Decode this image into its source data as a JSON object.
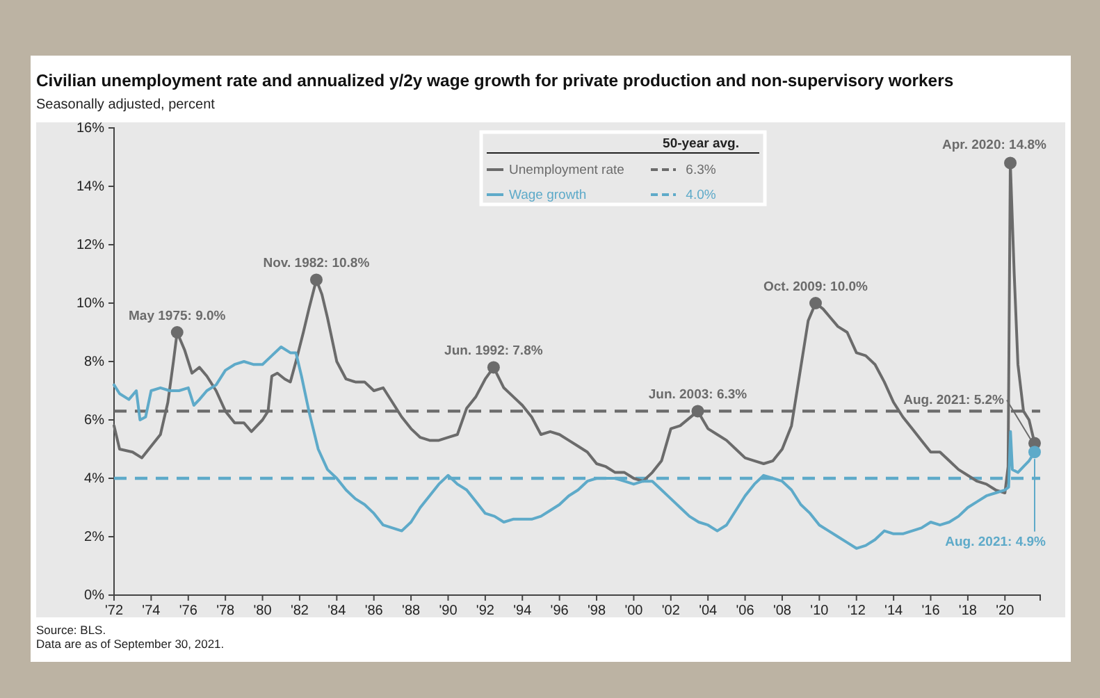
{
  "chart_data": {
    "type": "line",
    "title": "Civilian unemployment rate and annualized y/2y wage growth for private production and non-supervisory workers",
    "subtitle": "Seasonally adjusted, percent",
    "legend_title": "50-year avg.",
    "legend": "top",
    "marker": "none",
    "line_style": "solid",
    "grid": false,
    "xlim": [
      1972,
      2021.9
    ],
    "xticks": [
      {
        "value": 1972,
        "label": "'72"
      },
      {
        "value": 1974,
        "label": "'74"
      },
      {
        "value": 1976,
        "label": "'76"
      },
      {
        "value": 1978,
        "label": "'78"
      },
      {
        "value": 1980,
        "label": "'80"
      },
      {
        "value": 1982,
        "label": "'82"
      },
      {
        "value": 1984,
        "label": "'84"
      },
      {
        "value": 1986,
        "label": "'86"
      },
      {
        "value": 1988,
        "label": "'88"
      },
      {
        "value": 1990,
        "label": "'90"
      },
      {
        "value": 1992,
        "label": "'92"
      },
      {
        "value": 1994,
        "label": "'94"
      },
      {
        "value": 1996,
        "label": "'96"
      },
      {
        "value": 1998,
        "label": "'98"
      },
      {
        "value": 2000,
        "label": "'00"
      },
      {
        "value": 2002,
        "label": "'02"
      },
      {
        "value": 2004,
        "label": "'04"
      },
      {
        "value": 2006,
        "label": "'06"
      },
      {
        "value": 2008,
        "label": "'08"
      },
      {
        "value": 2010,
        "label": "'10"
      },
      {
        "value": 2012,
        "label": "'12"
      },
      {
        "value": 2014,
        "label": "'14"
      },
      {
        "value": 2016,
        "label": "'16"
      },
      {
        "value": 2018,
        "label": "'18"
      },
      {
        "value": 2020,
        "label": "'20"
      }
    ],
    "ylim": [
      0,
      16
    ],
    "yticks": [
      {
        "value": 0,
        "label": "0%"
      },
      {
        "value": 2,
        "label": "2%"
      },
      {
        "value": 4,
        "label": "4%"
      },
      {
        "value": 6,
        "label": "6%"
      },
      {
        "value": 8,
        "label": "8%"
      },
      {
        "value": 10,
        "label": "10%"
      },
      {
        "value": 12,
        "label": "12%"
      },
      {
        "value": 14,
        "label": "14%"
      },
      {
        "value": 16,
        "label": "16%"
      }
    ],
    "series": [
      {
        "name": "Unemployment rate",
        "color": "#6b6b6b",
        "x": [
          1972.0,
          1972.3,
          1973.0,
          1973.5,
          1974.0,
          1974.5,
          1974.9,
          1975.2,
          1975.4,
          1975.8,
          1976.2,
          1976.6,
          1977.0,
          1977.5,
          1978.0,
          1978.5,
          1979.0,
          1979.4,
          1980.0,
          1980.3,
          1980.5,
          1980.8,
          1981.2,
          1981.5,
          1981.8,
          1982.2,
          1982.5,
          1982.9,
          1983.2,
          1983.5,
          1984.0,
          1984.5,
          1985.0,
          1985.5,
          1986.0,
          1986.5,
          1987.0,
          1987.5,
          1988.0,
          1988.5,
          1989.0,
          1989.5,
          1990.0,
          1990.5,
          1991.0,
          1991.5,
          1992.0,
          1992.45,
          1993.0,
          1993.5,
          1994.0,
          1994.5,
          1995.0,
          1995.5,
          1996.0,
          1996.5,
          1997.0,
          1997.5,
          1998.0,
          1998.5,
          1999.0,
          1999.5,
          2000.0,
          2000.5,
          2001.0,
          2001.5,
          2002.0,
          2002.5,
          2003.45,
          2004.0,
          2004.5,
          2005.0,
          2005.5,
          2006.0,
          2006.5,
          2007.0,
          2007.5,
          2008.0,
          2008.5,
          2009.0,
          2009.4,
          2009.8,
          2010.2,
          2010.6,
          2011.0,
          2011.5,
          2012.0,
          2012.5,
          2013.0,
          2013.5,
          2014.0,
          2014.5,
          2015.0,
          2015.5,
          2016.0,
          2016.5,
          2017.0,
          2017.5,
          2018.0,
          2018.5,
          2019.0,
          2019.5,
          2020.0,
          2020.17,
          2020.29,
          2020.5,
          2020.7,
          2021.0,
          2021.3,
          2021.6
        ],
        "values": [
          5.8,
          5.0,
          4.9,
          4.7,
          5.1,
          5.5,
          6.6,
          8.0,
          9.0,
          8.4,
          7.6,
          7.8,
          7.5,
          7.0,
          6.3,
          5.9,
          5.9,
          5.6,
          6.0,
          6.3,
          7.5,
          7.6,
          7.4,
          7.3,
          8.0,
          9.0,
          9.8,
          10.8,
          10.3,
          9.5,
          8.0,
          7.4,
          7.3,
          7.3,
          7.0,
          7.1,
          6.6,
          6.1,
          5.7,
          5.4,
          5.3,
          5.3,
          5.4,
          5.5,
          6.4,
          6.8,
          7.4,
          7.8,
          7.1,
          6.8,
          6.5,
          6.1,
          5.5,
          5.6,
          5.5,
          5.3,
          5.1,
          4.9,
          4.5,
          4.4,
          4.2,
          4.2,
          4.0,
          3.9,
          4.2,
          4.6,
          5.7,
          5.8,
          6.3,
          5.7,
          5.5,
          5.3,
          5.0,
          4.7,
          4.6,
          4.5,
          4.6,
          5.0,
          5.8,
          7.8,
          9.4,
          10.0,
          9.8,
          9.5,
          9.2,
          9.0,
          8.3,
          8.2,
          7.9,
          7.3,
          6.6,
          6.1,
          5.7,
          5.3,
          4.9,
          4.9,
          4.6,
          4.3,
          4.1,
          3.9,
          3.8,
          3.6,
          3.5,
          4.4,
          14.8,
          11.0,
          7.9,
          6.3,
          6.0,
          5.2
        ]
      },
      {
        "name": "Wage growth",
        "color": "#5eaac9",
        "x": [
          1972.0,
          1972.3,
          1972.8,
          1973.2,
          1973.4,
          1973.7,
          1974.0,
          1974.5,
          1975.0,
          1975.5,
          1976.0,
          1976.3,
          1976.6,
          1977.0,
          1977.5,
          1978.0,
          1978.5,
          1979.0,
          1979.5,
          1980.0,
          1980.5,
          1981.0,
          1981.5,
          1981.8,
          1982.1,
          1982.5,
          1983.0,
          1983.5,
          1984.0,
          1984.5,
          1985.0,
          1985.5,
          1986.0,
          1986.5,
          1987.0,
          1987.5,
          1988.0,
          1988.5,
          1989.0,
          1989.5,
          1990.0,
          1990.5,
          1991.0,
          1991.5,
          1992.0,
          1992.5,
          1993.0,
          1993.5,
          1994.0,
          1994.5,
          1995.0,
          1995.5,
          1996.0,
          1996.5,
          1997.0,
          1997.5,
          1998.0,
          1998.5,
          1999.0,
          1999.5,
          2000.0,
          2000.5,
          2001.0,
          2001.5,
          2002.0,
          2002.5,
          2003.0,
          2003.5,
          2004.0,
          2004.5,
          2005.0,
          2005.5,
          2006.0,
          2006.5,
          2007.0,
          2007.5,
          2008.0,
          2008.5,
          2009.0,
          2009.5,
          2010.0,
          2010.5,
          2011.0,
          2011.5,
          2012.0,
          2012.5,
          2013.0,
          2013.5,
          2014.0,
          2014.5,
          2015.0,
          2015.5,
          2016.0,
          2016.5,
          2017.0,
          2017.5,
          2018.0,
          2018.5,
          2019.0,
          2019.5,
          2020.0,
          2020.2,
          2020.3,
          2020.4,
          2020.7,
          2021.0,
          2021.3,
          2021.6
        ],
        "values": [
          7.2,
          6.9,
          6.7,
          7.0,
          6.0,
          6.1,
          7.0,
          7.1,
          7.0,
          7.0,
          7.1,
          6.5,
          6.7,
          7.0,
          7.2,
          7.7,
          7.9,
          8.0,
          7.9,
          7.9,
          8.2,
          8.5,
          8.3,
          8.3,
          7.5,
          6.3,
          5.0,
          4.3,
          4.0,
          3.6,
          3.3,
          3.1,
          2.8,
          2.4,
          2.3,
          2.2,
          2.5,
          3.0,
          3.4,
          3.8,
          4.1,
          3.8,
          3.6,
          3.2,
          2.8,
          2.7,
          2.5,
          2.6,
          2.6,
          2.6,
          2.7,
          2.9,
          3.1,
          3.4,
          3.6,
          3.9,
          4.0,
          4.0,
          4.0,
          3.9,
          3.8,
          3.9,
          3.9,
          3.6,
          3.3,
          3.0,
          2.7,
          2.5,
          2.4,
          2.2,
          2.4,
          2.9,
          3.4,
          3.8,
          4.1,
          4.0,
          3.9,
          3.6,
          3.1,
          2.8,
          2.4,
          2.2,
          2.0,
          1.8,
          1.6,
          1.7,
          1.9,
          2.2,
          2.1,
          2.1,
          2.2,
          2.3,
          2.5,
          2.4,
          2.5,
          2.7,
          3.0,
          3.2,
          3.4,
          3.5,
          3.6,
          3.7,
          5.6,
          4.3,
          4.2,
          4.4,
          4.6,
          4.9
        ]
      }
    ],
    "ref_lines": [
      {
        "axis": "y",
        "value": 6.3,
        "label": "6.3%",
        "color": "#6b6b6b",
        "line_style": "dashed"
      },
      {
        "axis": "y",
        "value": 4.0,
        "label": "4.0%",
        "color": "#5eaac9",
        "line_style": "dashed"
      }
    ],
    "annotations": [
      {
        "text": "May 1975: 9.0%",
        "x": 1975.4,
        "y": 9.0
      },
      {
        "text": "Nov. 1982: 10.8%",
        "x": 1982.9,
        "y": 10.8
      },
      {
        "text": "Jun. 1992: 7.8%",
        "x": 1992.45,
        "y": 7.8
      },
      {
        "text": "Jun. 2003: 6.3%",
        "x": 2003.45,
        "y": 6.3
      },
      {
        "text": "Oct. 2009: 10.0%",
        "x": 2009.8,
        "y": 10.0
      },
      {
        "text": "Apr. 2020: 14.8%",
        "x": 2020.29,
        "y": 14.8
      },
      {
        "text": "Aug. 2021: 5.2%",
        "x": 2021.6,
        "y": 5.2
      },
      {
        "text": "Aug. 2021: 4.9%",
        "x": 2021.6,
        "y": 4.9
      },
      "Source: BLS.",
      "Data are as of September 30, 2021."
    ]
  }
}
